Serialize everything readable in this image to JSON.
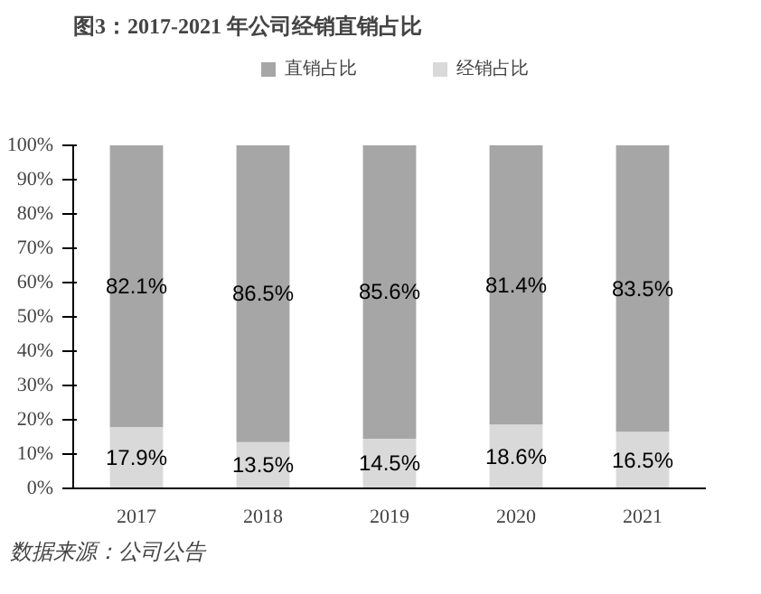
{
  "chart_data": {
    "type": "bar",
    "title": "图3：2017-2021 年公司经销直销占比",
    "categories": [
      "2017",
      "2018",
      "2019",
      "2020",
      "2021"
    ],
    "stacked": true,
    "series": [
      {
        "name": "经销占比",
        "color": "#d9d9d9",
        "values": [
          17.9,
          13.5,
          14.5,
          18.6,
          16.5
        ],
        "value_labels": [
          "17.9%",
          "13.5%",
          "14.5%",
          "18.6%",
          "16.5%"
        ]
      },
      {
        "name": "直销占比",
        "color": "#a6a6a6",
        "values": [
          82.1,
          86.5,
          85.6,
          81.4,
          83.5
        ],
        "value_labels": [
          "82.1%",
          "86.5%",
          "85.6%",
          "81.4%",
          "83.5%"
        ]
      }
    ],
    "ylim": [
      0,
      100
    ],
    "yticks": [
      {
        "value": 0,
        "label": "0%"
      },
      {
        "value": 10,
        "label": "10%"
      },
      {
        "value": 20,
        "label": "20%"
      },
      {
        "value": 30,
        "label": "30%"
      },
      {
        "value": 40,
        "label": "40%"
      },
      {
        "value": 50,
        "label": "50%"
      },
      {
        "value": 60,
        "label": "60%"
      },
      {
        "value": 70,
        "label": "70%"
      },
      {
        "value": 80,
        "label": "80%"
      },
      {
        "value": 90,
        "label": "90%"
      },
      {
        "value": 100,
        "label": "100%"
      }
    ],
    "grid": false,
    "legend": "top",
    "annotations": [
      "数据来源：公司公告"
    ]
  }
}
